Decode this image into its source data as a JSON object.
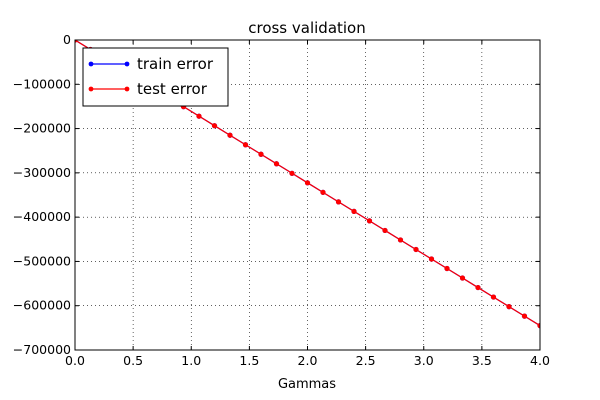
{
  "chart_data": {
    "type": "line",
    "title": "cross validation",
    "xlabel": "Gammas",
    "ylabel": "",
    "xlim": [
      0.0,
      4.0
    ],
    "ylim": [
      -700000,
      0
    ],
    "xticks": [
      0.0,
      0.5,
      1.0,
      1.5,
      2.0,
      2.5,
      3.0,
      3.5,
      4.0
    ],
    "xtick_labels": [
      "0.0",
      "0.5",
      "1.0",
      "1.5",
      "2.0",
      "2.5",
      "3.0",
      "3.5",
      "4.0"
    ],
    "yticks": [
      0,
      -100000,
      -200000,
      -300000,
      -400000,
      -500000,
      -600000,
      -700000
    ],
    "ytick_labels": [
      "0",
      "−100000",
      "−200000",
      "−300000",
      "−400000",
      "−500000",
      "−600000",
      "−700000"
    ],
    "grid": true,
    "legend_position": "top-left",
    "series": [
      {
        "name": "train error",
        "color": "#0000ff",
        "marker": "dot",
        "x": [
          0.0,
          0.1333,
          0.2667,
          0.4,
          0.5333,
          0.6667,
          0.8,
          0.9333,
          1.0667,
          1.2,
          1.3333,
          1.4667,
          1.6,
          1.7333,
          1.8667,
          2.0,
          2.1333,
          2.2667,
          2.4,
          2.5333,
          2.6667,
          2.8,
          2.9333,
          3.0667,
          3.2,
          3.3333,
          3.4667,
          3.6,
          3.7333,
          3.8667,
          4.0
        ],
        "y": [
          0,
          -21500,
          -43000,
          -64500,
          -86000,
          -107500,
          -129000,
          -150500,
          -172000,
          -193500,
          -215000,
          -236500,
          -258000,
          -279500,
          -301000,
          -322500,
          -344000,
          -365500,
          -387000,
          -408500,
          -430000,
          -451500,
          -473000,
          -494500,
          -516000,
          -537500,
          -559000,
          -580500,
          -602000,
          -623500,
          -645000
        ]
      },
      {
        "name": "test error",
        "color": "#ff0000",
        "marker": "dot",
        "x": [
          0.0,
          0.1333,
          0.2667,
          0.4,
          0.5333,
          0.6667,
          0.8,
          0.9333,
          1.0667,
          1.2,
          1.3333,
          1.4667,
          1.6,
          1.7333,
          1.8667,
          2.0,
          2.1333,
          2.2667,
          2.4,
          2.5333,
          2.6667,
          2.8,
          2.9333,
          3.0667,
          3.2,
          3.3333,
          3.4667,
          3.6,
          3.7333,
          3.8667,
          4.0
        ],
        "y": [
          0,
          -21500,
          -43000,
          -64500,
          -86000,
          -107500,
          -129000,
          -150500,
          -172000,
          -193500,
          -215000,
          -236500,
          -258000,
          -279500,
          -301000,
          -322500,
          -344000,
          -365500,
          -387000,
          -408500,
          -430000,
          -451500,
          -473000,
          -494500,
          -516000,
          -537500,
          -559000,
          -580500,
          -602000,
          -623500,
          -645000
        ]
      }
    ]
  }
}
